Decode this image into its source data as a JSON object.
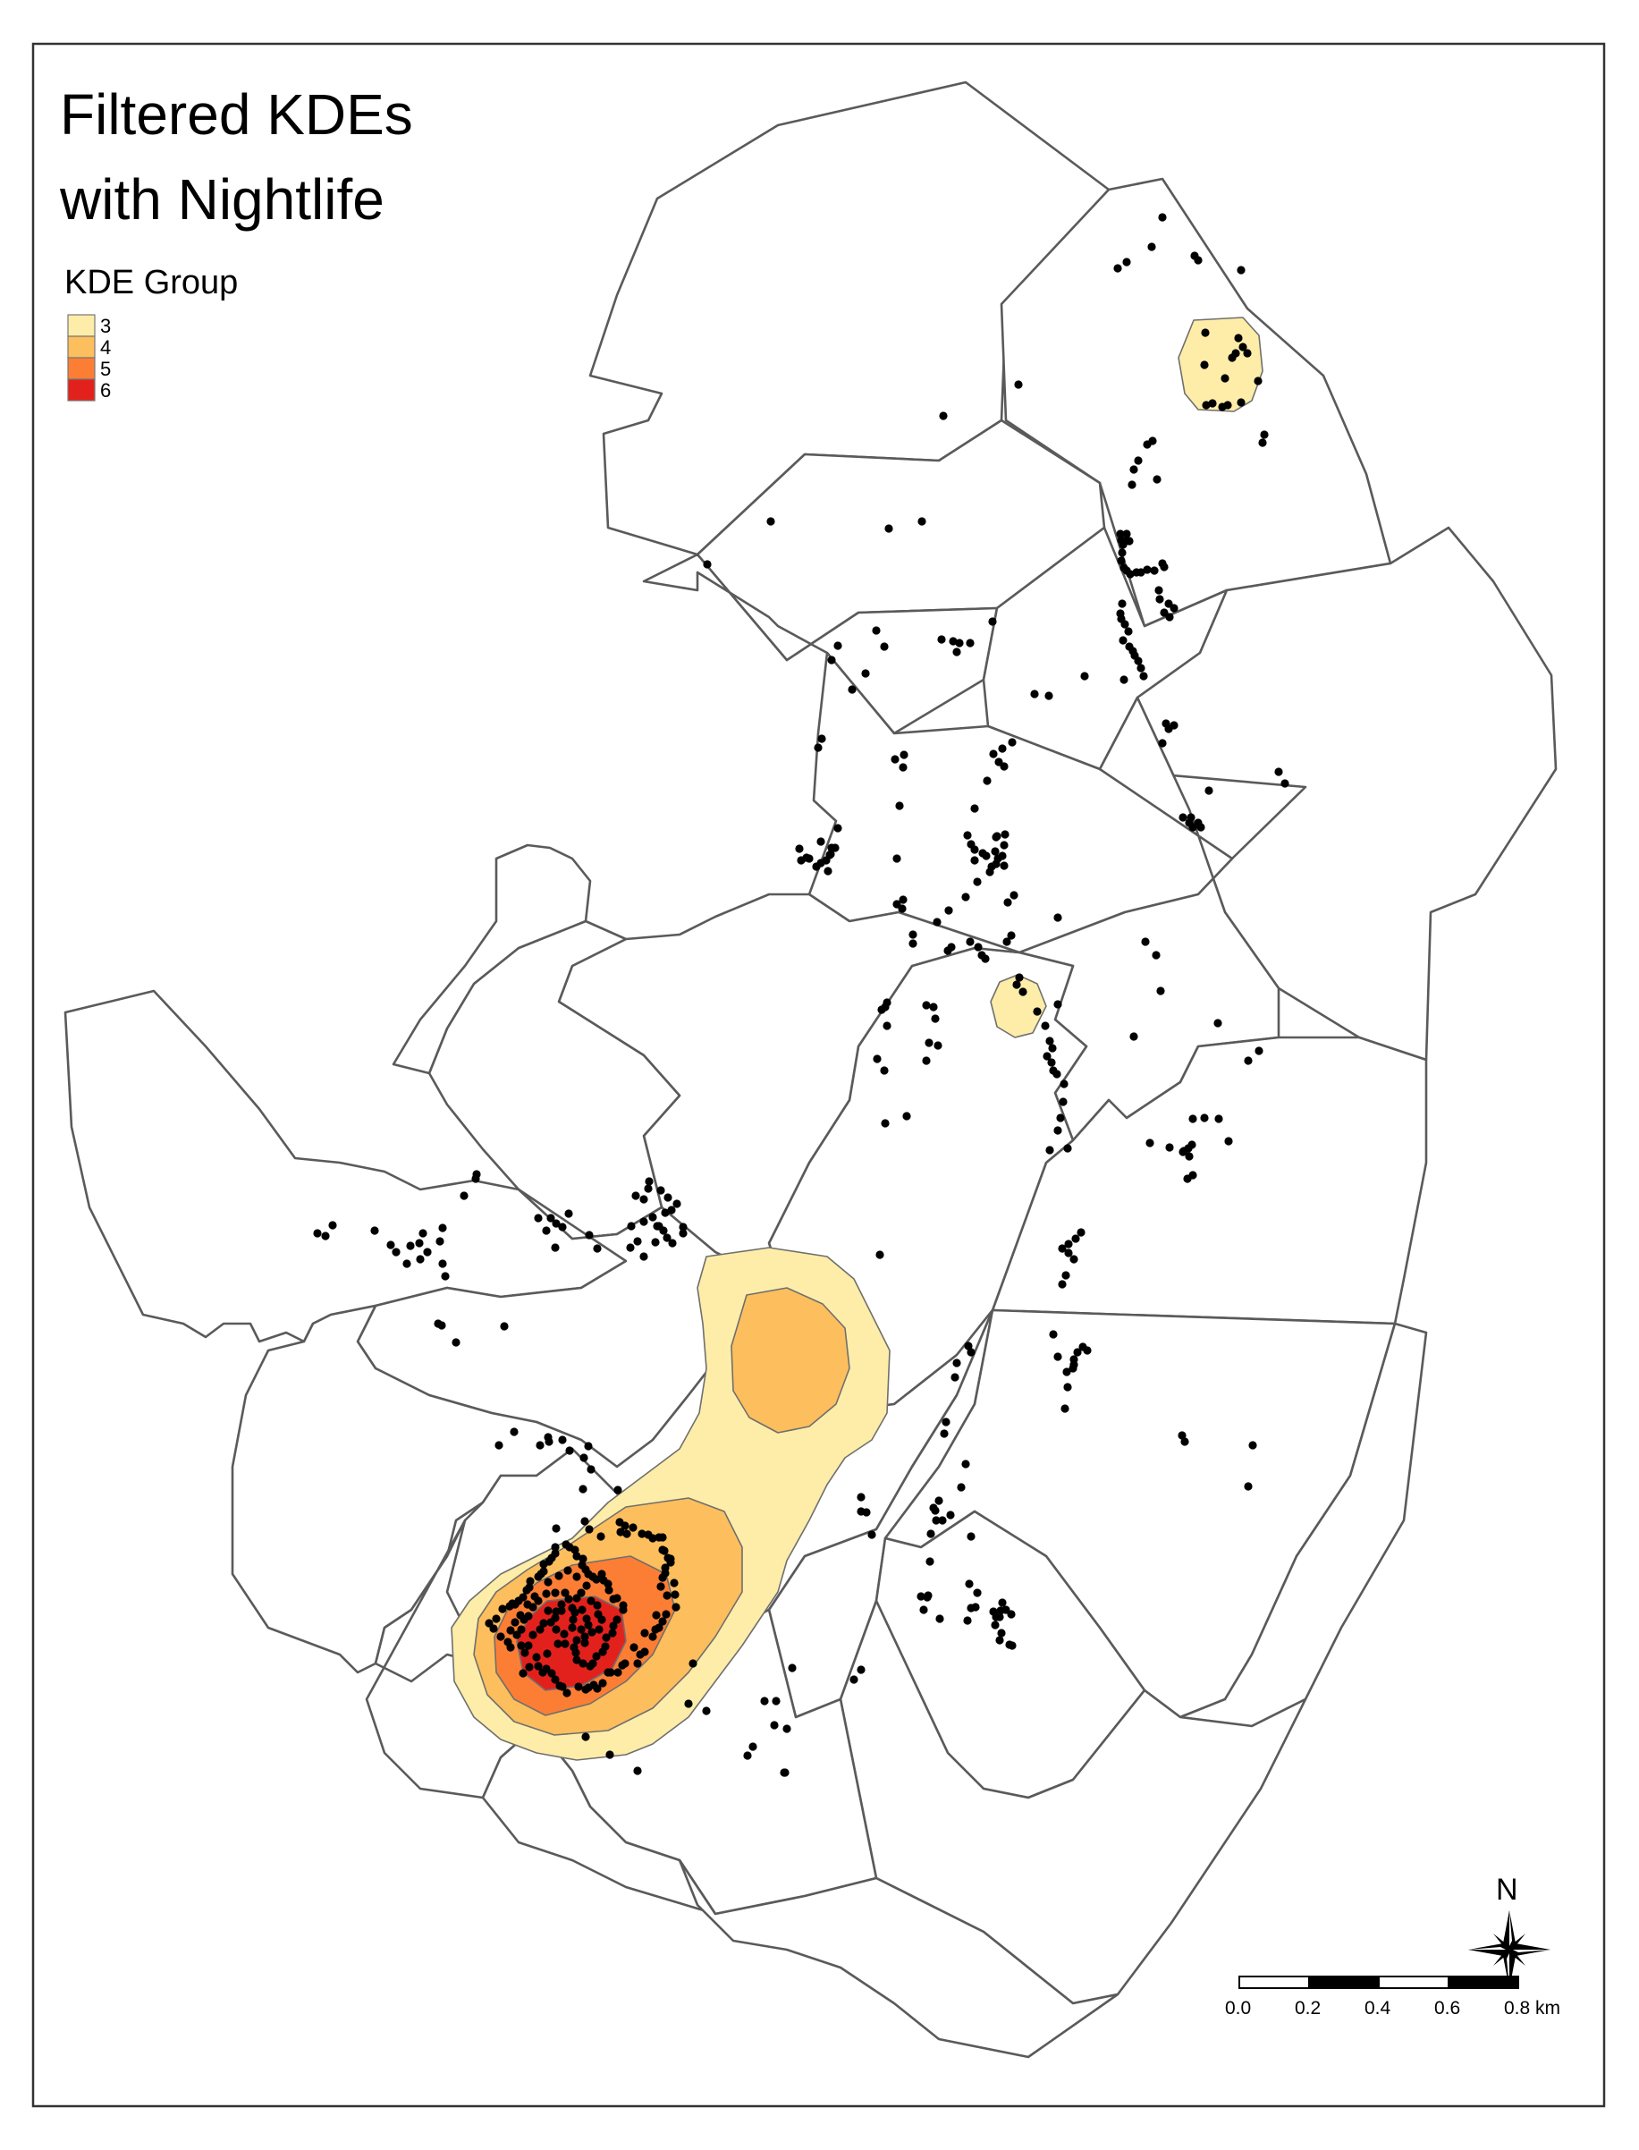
{
  "map": {
    "title_lines": [
      "Filtered KDEs",
      "with Nightlife"
    ],
    "legend": {
      "title": "KDE Group",
      "items": [
        {
          "label": "3",
          "color": "#FEEDA8"
        },
        {
          "label": "4",
          "color": "#FDBE5D"
        },
        {
          "label": "5",
          "color": "#FB7E34"
        },
        {
          "label": "6",
          "color": "#E3211C"
        }
      ]
    },
    "north_arrow": {
      "label": "N"
    },
    "scale_bar": {
      "ticks": [
        "0.0",
        "0.2",
        "0.4",
        "0.6",
        "0.8 km"
      ]
    },
    "colors": {
      "tract_border": "#5a5a5a",
      "frame": "#333333",
      "points": "#000000"
    },
    "point_layer": "nightlife locations"
  }
}
